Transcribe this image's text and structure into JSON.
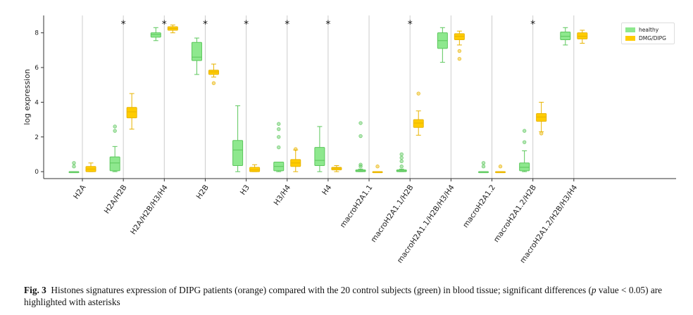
{
  "chart_data": {
    "type": "box",
    "xlabel": "",
    "ylabel": "log expression",
    "ylim": [
      -0.4,
      9.0
    ],
    "yticks": [
      0,
      2,
      4,
      6,
      8
    ],
    "grid": "vertical lines at categories",
    "legend_position": "top-right",
    "categories": [
      "H2A",
      "H2A/H2B",
      "H2A/H2B/H3/H4",
      "H2B",
      "H3",
      "H3/H4",
      "H4",
      "macroH2A1.1",
      "macroH2A1.1/H2B",
      "macroH2A1.1/H2B/H3/H4",
      "macroH2A1.2",
      "macroH2A1.2/H2B",
      "macroH2A1.2/H2B/H3/H4"
    ],
    "significant": [
      false,
      true,
      true,
      true,
      true,
      true,
      true,
      false,
      true,
      false,
      false,
      true,
      false
    ],
    "significance_marker": "*",
    "series": [
      {
        "name": "healthy",
        "color": "#5cc75c",
        "fill": "#8ee88e",
        "boxes": [
          {
            "whislo": 0.0,
            "q1": 0.0,
            "med": 0.0,
            "q3": 0.0,
            "whishi": 0.0,
            "fliers": [
              0.3,
              0.5
            ]
          },
          {
            "whislo": 0.0,
            "q1": 0.05,
            "med": 0.5,
            "q3": 0.85,
            "whishi": 1.45,
            "fliers": [
              2.35,
              2.6
            ]
          },
          {
            "whislo": 7.55,
            "q1": 7.75,
            "med": 7.9,
            "q3": 8.0,
            "whishi": 8.3,
            "fliers": []
          },
          {
            "whislo": 5.6,
            "q1": 6.4,
            "med": 6.6,
            "q3": 7.45,
            "whishi": 7.7,
            "fliers": []
          },
          {
            "whislo": 0.0,
            "q1": 0.35,
            "med": 1.25,
            "q3": 1.8,
            "whishi": 3.8,
            "fliers": []
          },
          {
            "whislo": 0.0,
            "q1": 0.05,
            "med": 0.3,
            "q3": 0.55,
            "whishi": 0.55,
            "fliers": [
              1.4,
              2.0,
              2.45,
              2.75
            ]
          },
          {
            "whislo": 0.0,
            "q1": 0.35,
            "med": 0.65,
            "q3": 1.4,
            "whishi": 2.6,
            "fliers": []
          },
          {
            "whislo": 0.0,
            "q1": 0.0,
            "med": 0.05,
            "q3": 0.1,
            "whishi": 0.15,
            "fliers": [
              0.3,
              0.4,
              2.05,
              2.8
            ]
          },
          {
            "whislo": 0.0,
            "q1": 0.0,
            "med": 0.05,
            "q3": 0.1,
            "whishi": 0.15,
            "fliers": [
              0.3,
              0.6,
              0.8,
              1.0
            ]
          },
          {
            "whislo": 6.3,
            "q1": 7.1,
            "med": 7.55,
            "q3": 8.0,
            "whishi": 8.3,
            "fliers": []
          },
          {
            "whislo": 0.0,
            "q1": 0.0,
            "med": 0.0,
            "q3": 0.0,
            "whishi": 0.0,
            "fliers": [
              0.3,
              0.5
            ]
          },
          {
            "whislo": 0.0,
            "q1": 0.05,
            "med": 0.25,
            "q3": 0.5,
            "whishi": 1.2,
            "fliers": [
              1.7,
              2.35
            ]
          },
          {
            "whislo": 7.3,
            "q1": 7.6,
            "med": 7.8,
            "q3": 8.05,
            "whishi": 8.3,
            "fliers": []
          }
        ]
      },
      {
        "name": "DMG/DIPG",
        "color": "#e8b400",
        "fill": "#ffcc00",
        "boxes": [
          {
            "whislo": 0.0,
            "q1": 0.0,
            "med": 0.15,
            "q3": 0.3,
            "whishi": 0.5,
            "fliers": []
          },
          {
            "whislo": 2.45,
            "q1": 3.1,
            "med": 3.45,
            "q3": 3.7,
            "whishi": 4.5,
            "fliers": []
          },
          {
            "whislo": 8.0,
            "q1": 8.15,
            "med": 8.25,
            "q3": 8.35,
            "whishi": 8.45,
            "fliers": []
          },
          {
            "whislo": 5.45,
            "q1": 5.6,
            "med": 5.75,
            "q3": 5.85,
            "whishi": 6.2,
            "fliers": [
              5.1
            ]
          },
          {
            "whislo": 0.0,
            "q1": 0.0,
            "med": 0.1,
            "q3": 0.25,
            "whishi": 0.4,
            "fliers": []
          },
          {
            "whislo": 0.0,
            "q1": 0.3,
            "med": 0.5,
            "q3": 0.7,
            "whishi": 1.25,
            "fliers": [
              1.3
            ]
          },
          {
            "whislo": 0.0,
            "q1": 0.1,
            "med": 0.2,
            "q3": 0.25,
            "whishi": 0.35,
            "fliers": []
          },
          {
            "whislo": 0.0,
            "q1": 0.0,
            "med": 0.0,
            "q3": 0.0,
            "whishi": 0.0,
            "fliers": [
              0.3
            ]
          },
          {
            "whislo": 2.1,
            "q1": 2.55,
            "med": 2.8,
            "q3": 3.0,
            "whishi": 3.5,
            "fliers": [
              4.5
            ]
          },
          {
            "whislo": 7.3,
            "q1": 7.6,
            "med": 7.8,
            "q3": 7.95,
            "whishi": 8.1,
            "fliers": [
              6.5,
              6.95
            ]
          },
          {
            "whislo": 0.0,
            "q1": 0.0,
            "med": 0.0,
            "q3": 0.0,
            "whishi": 0.0,
            "fliers": [
              0.3
            ]
          },
          {
            "whislo": 2.3,
            "q1": 2.9,
            "med": 3.15,
            "q3": 3.35,
            "whishi": 4.0,
            "fliers": [
              2.2
            ]
          },
          {
            "whislo": 7.4,
            "q1": 7.65,
            "med": 7.8,
            "q3": 8.0,
            "whishi": 8.15,
            "fliers": []
          }
        ]
      }
    ]
  },
  "caption": {
    "label": "Fig. 3",
    "text_before_p": "Histones signatures expression of DIPG patients (orange) compared with the 20 control subjects (green) in blood tissue; significant differences (",
    "p_symbol": "p",
    "text_after_p": " value < 0.05) are highlighted with asterisks"
  }
}
